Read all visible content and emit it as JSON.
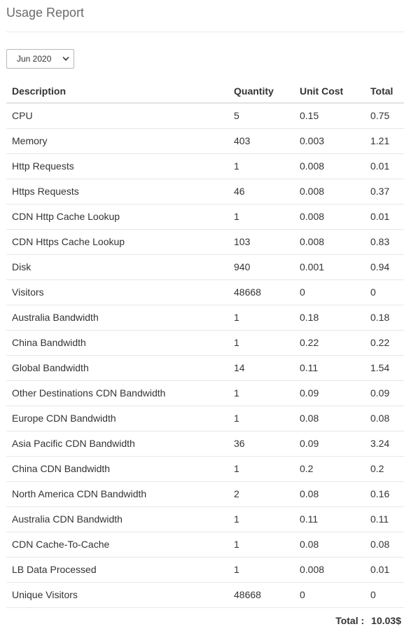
{
  "header": {
    "title": "Usage Report"
  },
  "filters": {
    "month_selected": "Jun 2020"
  },
  "table": {
    "columns": [
      "Description",
      "Quantity",
      "Unit Cost",
      "Total"
    ],
    "rows": [
      [
        "CPU",
        "5",
        "0.15",
        "0.75"
      ],
      [
        "Memory",
        "403",
        "0.003",
        "1.21"
      ],
      [
        "Http Requests",
        "1",
        "0.008",
        "0.01"
      ],
      [
        "Https Requests",
        "46",
        "0.008",
        "0.37"
      ],
      [
        "CDN Http Cache Lookup",
        "1",
        "0.008",
        "0.01"
      ],
      [
        "CDN Https Cache Lookup",
        "103",
        "0.008",
        "0.83"
      ],
      [
        "Disk",
        "940",
        "0.001",
        "0.94"
      ],
      [
        "Visitors",
        "48668",
        "0",
        "0"
      ],
      [
        "Australia Bandwidth",
        "1",
        "0.18",
        "0.18"
      ],
      [
        "China Bandwidth",
        "1",
        "0.22",
        "0.22"
      ],
      [
        "Global Bandwidth",
        "14",
        "0.11",
        "1.54"
      ],
      [
        "Other Destinations CDN Bandwidth",
        "1",
        "0.09",
        "0.09"
      ],
      [
        "Europe CDN Bandwidth",
        "1",
        "0.08",
        "0.08"
      ],
      [
        "Asia Pacific CDN Bandwidth",
        "36",
        "0.09",
        "3.24"
      ],
      [
        "China CDN Bandwidth",
        "1",
        "0.2",
        "0.2"
      ],
      [
        "North America CDN Bandwidth",
        "2",
        "0.08",
        "0.16"
      ],
      [
        "Australia CDN Bandwidth",
        "1",
        "0.11",
        "0.11"
      ],
      [
        "CDN Cache-To-Cache",
        "1",
        "0.08",
        "0.08"
      ],
      [
        "LB Data Processed",
        "1",
        "0.008",
        "0.01"
      ],
      [
        "Unique Visitors",
        "48668",
        "0",
        "0"
      ]
    ]
  },
  "summary": {
    "total_label": "Total :",
    "total_value": "10.03$"
  },
  "icons": {
    "dropdown": "chevron-down-icon"
  },
  "colors": {
    "text": "#333333",
    "title": "#6b6b6b",
    "divider": "#e7e7e7"
  }
}
